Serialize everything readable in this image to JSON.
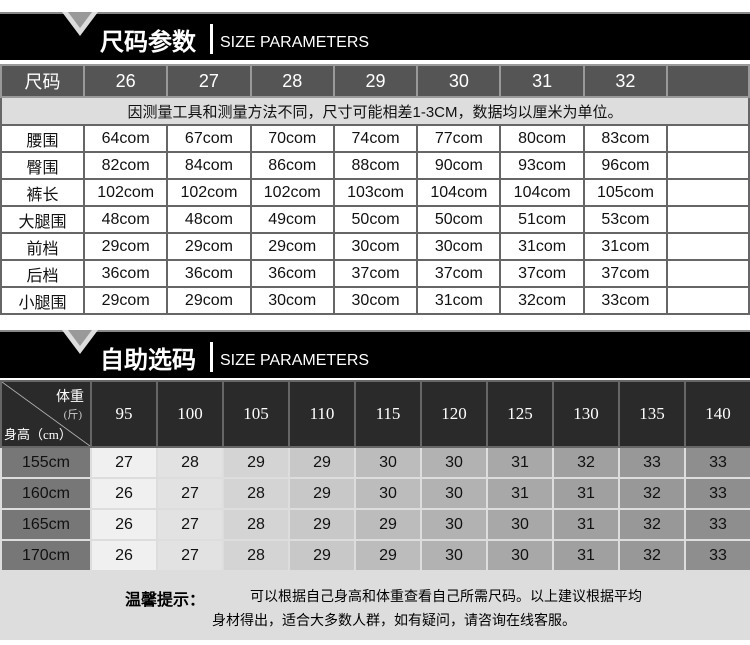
{
  "section1": {
    "title_cn": "尺码参数",
    "title_en": "SIZE PARAMETERS"
  },
  "size_table": {
    "header_label": "尺码",
    "sizes": [
      "26",
      "27",
      "28",
      "29",
      "30",
      "31",
      "32",
      ""
    ],
    "note": "因测量工具和测量方法不同，尺寸可能相差1-3CM，数据均以厘米为单位。",
    "rows": [
      {
        "label": "腰围",
        "values": [
          "64com",
          "67com",
          "70com",
          "74com",
          "77com",
          "80com",
          "83com",
          ""
        ]
      },
      {
        "label": "臀围",
        "values": [
          "82com",
          "84com",
          "86com",
          "88com",
          "90com",
          "93com",
          "96com",
          ""
        ]
      },
      {
        "label": "裤长",
        "values": [
          "102com",
          "102com",
          "102com",
          "103com",
          "104com",
          "104com",
          "105com",
          ""
        ]
      },
      {
        "label": "大腿围",
        "values": [
          "48com",
          "48com",
          "49com",
          "50com",
          "50com",
          "51com",
          "53com",
          ""
        ]
      },
      {
        "label": "前档",
        "values": [
          "29com",
          "29com",
          "29com",
          "30com",
          "30com",
          "31com",
          "31com",
          ""
        ]
      },
      {
        "label": "后档",
        "values": [
          "36com",
          "36com",
          "36com",
          "37com",
          "37com",
          "37com",
          "37com",
          ""
        ]
      },
      {
        "label": "小腿围",
        "values": [
          "29com",
          "29com",
          "30com",
          "30com",
          "31com",
          "32com",
          "33com",
          ""
        ]
      }
    ]
  },
  "section2": {
    "title_cn": "自助选码",
    "title_en": "SIZE PARAMETERS"
  },
  "guide_table": {
    "weight_label": "体重",
    "weight_unit": "(斤)",
    "height_label": "身高（cm）",
    "weights": [
      "95",
      "100",
      "105",
      "110",
      "115",
      "120",
      "125",
      "130",
      "135",
      "140"
    ],
    "rows": [
      {
        "height": "155cm",
        "values": [
          "27",
          "28",
          "29",
          "29",
          "30",
          "30",
          "31",
          "32",
          "33",
          "33"
        ]
      },
      {
        "height": "160cm",
        "values": [
          "26",
          "27",
          "28",
          "29",
          "30",
          "30",
          "31",
          "31",
          "32",
          "33"
        ]
      },
      {
        "height": "165cm",
        "values": [
          "26",
          "27",
          "28",
          "29",
          "29",
          "30",
          "30",
          "31",
          "32",
          "33"
        ]
      },
      {
        "height": "170cm",
        "values": [
          "26",
          "27",
          "28",
          "29",
          "29",
          "30",
          "30",
          "31",
          "32",
          "33"
        ]
      }
    ]
  },
  "footer": {
    "title": "温馨提示：",
    "line1": "可以根据自己身高和体重查看自己所需尺码。以上建议根据平均",
    "line2": "身材得出，适合大多数人群，如有疑问，请咨询在线客服。"
  }
}
